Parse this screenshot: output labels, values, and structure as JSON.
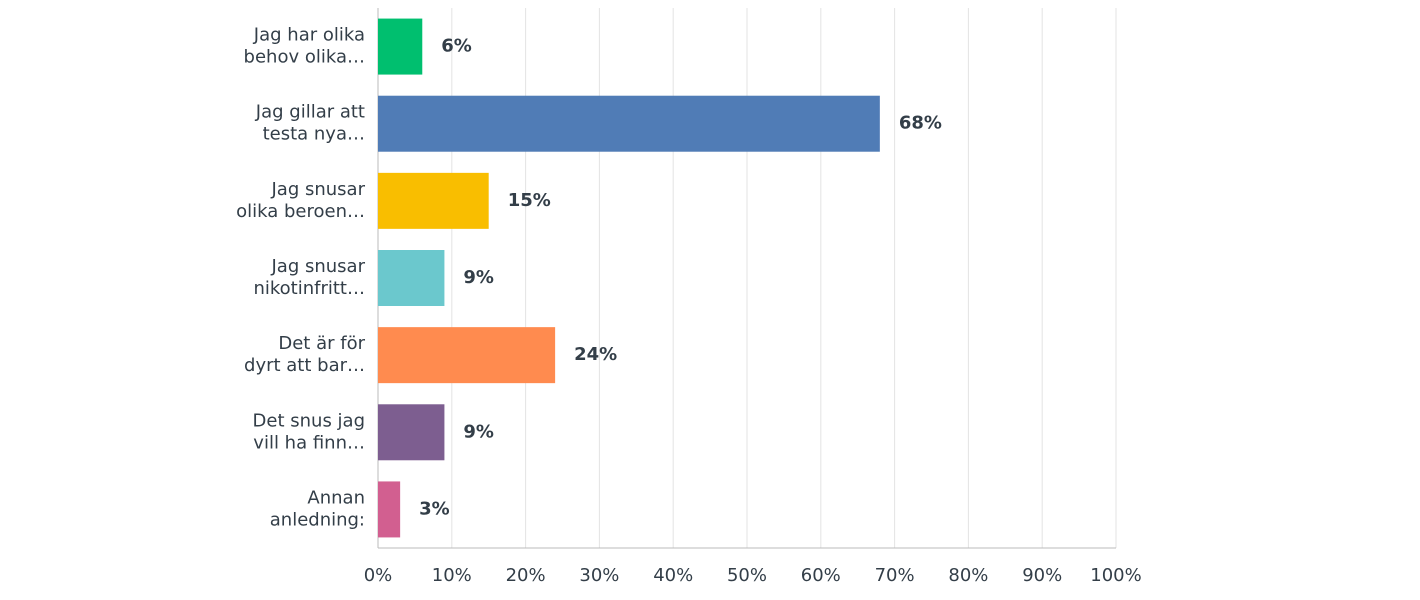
{
  "chart_data": {
    "type": "barh",
    "categories": [
      [
        "Jag har olika",
        "behov olika…"
      ],
      [
        "Jag gillar att",
        "testa nya…"
      ],
      [
        "Jag snusar",
        "olika beroen…"
      ],
      [
        "Jag snusar",
        "nikotinfritt…"
      ],
      [
        "Det är för",
        "dyrt att bar…"
      ],
      [
        "Det snus jag",
        "vill ha finn…"
      ],
      [
        "Annan",
        "anledning:"
      ]
    ],
    "values": [
      6,
      68,
      15,
      9,
      24,
      9,
      3
    ],
    "value_labels": [
      "6%",
      "68%",
      "15%",
      "9%",
      "24%",
      "9%",
      "3%"
    ],
    "colors": [
      "#00bf6f",
      "#507cb6",
      "#f9be00",
      "#6bc8cd",
      "#ff8b4f",
      "#7d5e90",
      "#d25f90"
    ],
    "xlim": [
      0,
      100
    ],
    "xticks": [
      {
        "value": 0,
        "label": "0%"
      },
      {
        "value": 10,
        "label": "10%"
      },
      {
        "value": 20,
        "label": "20%"
      },
      {
        "value": 30,
        "label": "30%"
      },
      {
        "value": 40,
        "label": "40%"
      },
      {
        "value": 50,
        "label": "50%"
      },
      {
        "value": 60,
        "label": "60%"
      },
      {
        "value": 70,
        "label": "70%"
      },
      {
        "value": 80,
        "label": "80%"
      },
      {
        "value": 90,
        "label": "90%"
      },
      {
        "value": 100,
        "label": "100%"
      }
    ],
    "grid": true
  }
}
